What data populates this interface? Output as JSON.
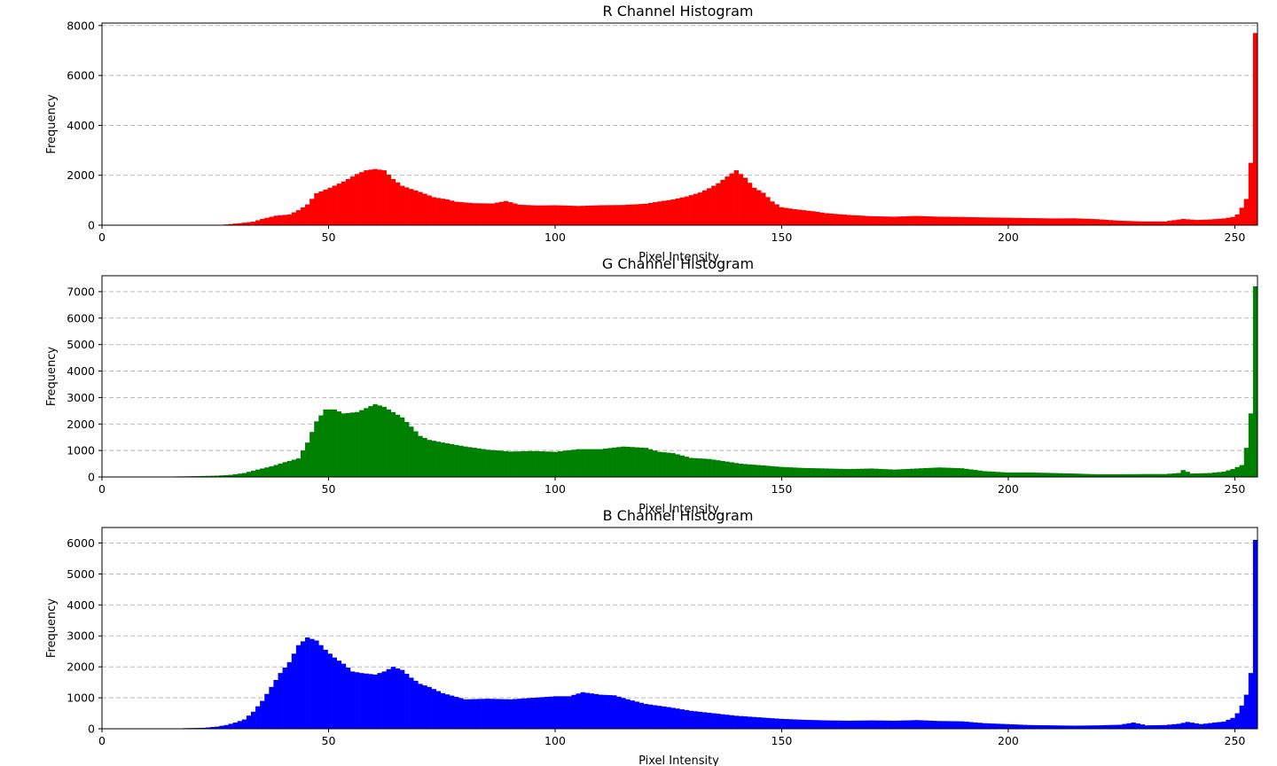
{
  "chart_data": [
    {
      "type": "bar",
      "title": "R Channel Histogram",
      "xlabel": "Pixel Intensity",
      "ylabel": "Frequency",
      "color": "#ff0000",
      "xlim": [
        0,
        255
      ],
      "ylim": [
        0,
        8100
      ],
      "xticks": [
        0,
        50,
        100,
        150,
        200,
        250
      ],
      "yticks": [
        0,
        2000,
        4000,
        6000,
        8000
      ],
      "grid": "y-dashed",
      "anchors": [
        [
          0,
          0
        ],
        [
          25,
          0
        ],
        [
          27,
          30
        ],
        [
          30,
          80
        ],
        [
          33,
          140
        ],
        [
          35,
          250
        ],
        [
          38,
          380
        ],
        [
          41,
          430
        ],
        [
          43,
          600
        ],
        [
          45,
          830
        ],
        [
          47,
          1280
        ],
        [
          50,
          1500
        ],
        [
          53,
          1750
        ],
        [
          56,
          2050
        ],
        [
          58,
          2200
        ],
        [
          60,
          2250
        ],
        [
          62,
          2200
        ],
        [
          64,
          1850
        ],
        [
          66,
          1580
        ],
        [
          68,
          1450
        ],
        [
          70,
          1330
        ],
        [
          73,
          1120
        ],
        [
          76,
          1030
        ],
        [
          78,
          940
        ],
        [
          82,
          880
        ],
        [
          86,
          870
        ],
        [
          89,
          970
        ],
        [
          92,
          820
        ],
        [
          96,
          790
        ],
        [
          100,
          800
        ],
        [
          105,
          770
        ],
        [
          110,
          800
        ],
        [
          115,
          810
        ],
        [
          120,
          860
        ],
        [
          123,
          950
        ],
        [
          126,
          1030
        ],
        [
          129,
          1150
        ],
        [
          132,
          1310
        ],
        [
          134,
          1480
        ],
        [
          136,
          1680
        ],
        [
          138,
          1950
        ],
        [
          140,
          2200
        ],
        [
          142,
          1900
        ],
        [
          144,
          1500
        ],
        [
          146,
          1300
        ],
        [
          148,
          950
        ],
        [
          150,
          720
        ],
        [
          153,
          640
        ],
        [
          157,
          560
        ],
        [
          160,
          480
        ],
        [
          165,
          410
        ],
        [
          170,
          360
        ],
        [
          175,
          340
        ],
        [
          180,
          370
        ],
        [
          185,
          340
        ],
        [
          190,
          330
        ],
        [
          195,
          310
        ],
        [
          200,
          300
        ],
        [
          205,
          285
        ],
        [
          210,
          270
        ],
        [
          215,
          275
        ],
        [
          220,
          240
        ],
        [
          225,
          180
        ],
        [
          230,
          150
        ],
        [
          235,
          150
        ],
        [
          239,
          250
        ],
        [
          242,
          210
        ],
        [
          245,
          230
        ],
        [
          248,
          270
        ],
        [
          250,
          330
        ],
        [
          251,
          430
        ],
        [
          252,
          700
        ],
        [
          253,
          1050
        ],
        [
          254,
          2500
        ],
        [
          255,
          7700
        ]
      ]
    },
    {
      "type": "bar",
      "title": "G Channel Histogram",
      "xlabel": "Pixel Intensity",
      "ylabel": "Frequency",
      "color": "#008000",
      "xlim": [
        0,
        255
      ],
      "ylim": [
        0,
        7600
      ],
      "xticks": [
        0,
        50,
        100,
        150,
        200,
        250
      ],
      "yticks": [
        0,
        1000,
        2000,
        3000,
        4000,
        5000,
        6000,
        7000
      ],
      "grid": "y-dashed",
      "anchors": [
        [
          0,
          0
        ],
        [
          14,
          0
        ],
        [
          16,
          20
        ],
        [
          20,
          30
        ],
        [
          25,
          50
        ],
        [
          28,
          80
        ],
        [
          31,
          150
        ],
        [
          34,
          280
        ],
        [
          37,
          400
        ],
        [
          40,
          560
        ],
        [
          43,
          700
        ],
        [
          45,
          1300
        ],
        [
          47,
          2100
        ],
        [
          49,
          2550
        ],
        [
          51,
          2550
        ],
        [
          53,
          2400
        ],
        [
          56,
          2450
        ],
        [
          58,
          2600
        ],
        [
          60,
          2750
        ],
        [
          62,
          2650
        ],
        [
          64,
          2450
        ],
        [
          66,
          2250
        ],
        [
          68,
          1900
        ],
        [
          70,
          1550
        ],
        [
          72,
          1400
        ],
        [
          75,
          1300
        ],
        [
          80,
          1150
        ],
        [
          85,
          1030
        ],
        [
          90,
          960
        ],
        [
          95,
          980
        ],
        [
          100,
          950
        ],
        [
          105,
          1050
        ],
        [
          110,
          1050
        ],
        [
          115,
          1150
        ],
        [
          120,
          1100
        ],
        [
          123,
          950
        ],
        [
          126,
          900
        ],
        [
          130,
          720
        ],
        [
          134,
          680
        ],
        [
          138,
          580
        ],
        [
          141,
          500
        ],
        [
          145,
          450
        ],
        [
          150,
          380
        ],
        [
          155,
          340
        ],
        [
          160,
          320
        ],
        [
          165,
          300
        ],
        [
          170,
          320
        ],
        [
          175,
          280
        ],
        [
          180,
          320
        ],
        [
          185,
          360
        ],
        [
          190,
          330
        ],
        [
          195,
          220
        ],
        [
          200,
          170
        ],
        [
          205,
          170
        ],
        [
          210,
          150
        ],
        [
          215,
          130
        ],
        [
          220,
          100
        ],
        [
          225,
          100
        ],
        [
          230,
          110
        ],
        [
          235,
          110
        ],
        [
          238,
          150
        ],
        [
          239,
          260
        ],
        [
          241,
          130
        ],
        [
          245,
          150
        ],
        [
          248,
          200
        ],
        [
          250,
          300
        ],
        [
          252,
          450
        ],
        [
          253,
          1100
        ],
        [
          254,
          2400
        ],
        [
          255,
          7200
        ]
      ]
    },
    {
      "type": "bar",
      "title": "B Channel Histogram",
      "xlabel": "Pixel Intensity",
      "ylabel": "Frequency",
      "color": "#0000ff",
      "xlim": [
        0,
        255
      ],
      "ylim": [
        0,
        6500
      ],
      "xticks": [
        0,
        50,
        100,
        150,
        200,
        250
      ],
      "yticks": [
        0,
        1000,
        2000,
        3000,
        4000,
        5000,
        6000
      ],
      "grid": "y-dashed",
      "anchors": [
        [
          0,
          0
        ],
        [
          16,
          0
        ],
        [
          18,
          20
        ],
        [
          22,
          30
        ],
        [
          25,
          70
        ],
        [
          27,
          120
        ],
        [
          29,
          200
        ],
        [
          31,
          300
        ],
        [
          33,
          550
        ],
        [
          35,
          900
        ],
        [
          37,
          1350
        ],
        [
          39,
          1800
        ],
        [
          41,
          2150
        ],
        [
          43,
          2700
        ],
        [
          45,
          2950
        ],
        [
          47,
          2850
        ],
        [
          49,
          2550
        ],
        [
          51,
          2300
        ],
        [
          53,
          2100
        ],
        [
          55,
          1850
        ],
        [
          57,
          1800
        ],
        [
          60,
          1750
        ],
        [
          62,
          1850
        ],
        [
          64,
          2000
        ],
        [
          66,
          1900
        ],
        [
          68,
          1650
        ],
        [
          70,
          1450
        ],
        [
          72,
          1350
        ],
        [
          75,
          1150
        ],
        [
          80,
          950
        ],
        [
          85,
          970
        ],
        [
          90,
          950
        ],
        [
          95,
          1000
        ],
        [
          100,
          1050
        ],
        [
          103,
          1050
        ],
        [
          106,
          1180
        ],
        [
          110,
          1100
        ],
        [
          113,
          1080
        ],
        [
          116,
          950
        ],
        [
          120,
          800
        ],
        [
          125,
          700
        ],
        [
          130,
          580
        ],
        [
          135,
          500
        ],
        [
          140,
          420
        ],
        [
          145,
          370
        ],
        [
          150,
          320
        ],
        [
          155,
          290
        ],
        [
          160,
          270
        ],
        [
          165,
          260
        ],
        [
          170,
          270
        ],
        [
          175,
          260
        ],
        [
          180,
          280
        ],
        [
          185,
          250
        ],
        [
          190,
          240
        ],
        [
          195,
          180
        ],
        [
          200,
          150
        ],
        [
          205,
          120
        ],
        [
          210,
          110
        ],
        [
          215,
          100
        ],
        [
          220,
          110
        ],
        [
          225,
          130
        ],
        [
          228,
          200
        ],
        [
          231,
          110
        ],
        [
          235,
          120
        ],
        [
          238,
          160
        ],
        [
          240,
          220
        ],
        [
          243,
          150
        ],
        [
          246,
          200
        ],
        [
          248,
          230
        ],
        [
          250,
          350
        ],
        [
          251,
          500
        ],
        [
          252,
          750
        ],
        [
          253,
          1100
        ],
        [
          254,
          1800
        ],
        [
          255,
          6100
        ]
      ]
    }
  ]
}
